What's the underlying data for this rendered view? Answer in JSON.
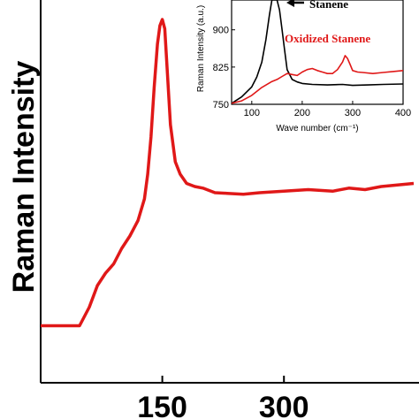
{
  "chart_data": [
    {
      "type": "line",
      "title": "",
      "xlabel": "",
      "ylabel": "Raman Intensity",
      "xlim": [
        0,
        460
      ],
      "ylim": [
        0,
        100
      ],
      "x_tick_labels": [
        "150",
        "300"
      ],
      "x_ticks": [
        150,
        300
      ],
      "grid": false,
      "series": [
        {
          "color": "#e01818",
          "x": [
            0,
            48,
            60,
            70,
            80,
            90,
            100,
            110,
            120,
            128,
            132,
            136,
            140,
            144,
            147,
            150,
            153,
            156,
            160,
            166,
            172,
            180,
            190,
            200,
            215,
            230,
            250,
            270,
            300,
            330,
            360,
            380,
            400,
            420,
            440,
            460
          ],
          "y": [
            1,
            1,
            7,
            14,
            18,
            21,
            26,
            30,
            35,
            42,
            50,
            62,
            78,
            92,
            98,
            100,
            97,
            84,
            66,
            54,
            50,
            47,
            46,
            45.5,
            44,
            43.8,
            43.5,
            44,
            44.5,
            45,
            44.5,
            45.5,
            45,
            46,
            46.5,
            47
          ]
        }
      ]
    },
    {
      "type": "line",
      "title": "",
      "xlabel": "Wave number (cm⁻¹)",
      "ylabel": "Raman Intensity (a.u.)",
      "xlim": [
        60,
        400
      ],
      "ylim": [
        750,
        960
      ],
      "x_tick_labels": [
        "100",
        "200",
        "300",
        "400"
      ],
      "x_ticks": [
        100,
        200,
        300,
        400
      ],
      "y_tick_labels": [
        "750",
        "825",
        "900"
      ],
      "y_ticks": [
        750,
        825,
        900
      ],
      "grid": false,
      "series": [
        {
          "name": "Stanene",
          "color": "#000000",
          "x": [
            60,
            80,
            100,
            110,
            120,
            128,
            135,
            140,
            145,
            150,
            155,
            160,
            165,
            170,
            180,
            190,
            200,
            220,
            250,
            280,
            300,
            330,
            360,
            400
          ],
          "y": [
            752,
            765,
            785,
            805,
            835,
            880,
            930,
            960,
            960,
            960,
            940,
            900,
            860,
            820,
            800,
            795,
            792,
            790,
            789,
            790,
            788,
            789,
            790,
            791
          ]
        },
        {
          "name": "Oxidized Stanene",
          "color": "#e01818",
          "x": [
            60,
            80,
            100,
            120,
            140,
            150,
            160,
            170,
            180,
            190,
            200,
            210,
            220,
            230,
            240,
            250,
            260,
            270,
            280,
            285,
            290,
            295,
            300,
            310,
            320,
            340,
            360,
            380,
            400
          ],
          "y": [
            752,
            757,
            768,
            784,
            796,
            800,
            806,
            812,
            810,
            808,
            815,
            820,
            822,
            818,
            815,
            812,
            812,
            820,
            835,
            848,
            842,
            830,
            818,
            815,
            814,
            812,
            814,
            816,
            818
          ]
        }
      ]
    }
  ]
}
